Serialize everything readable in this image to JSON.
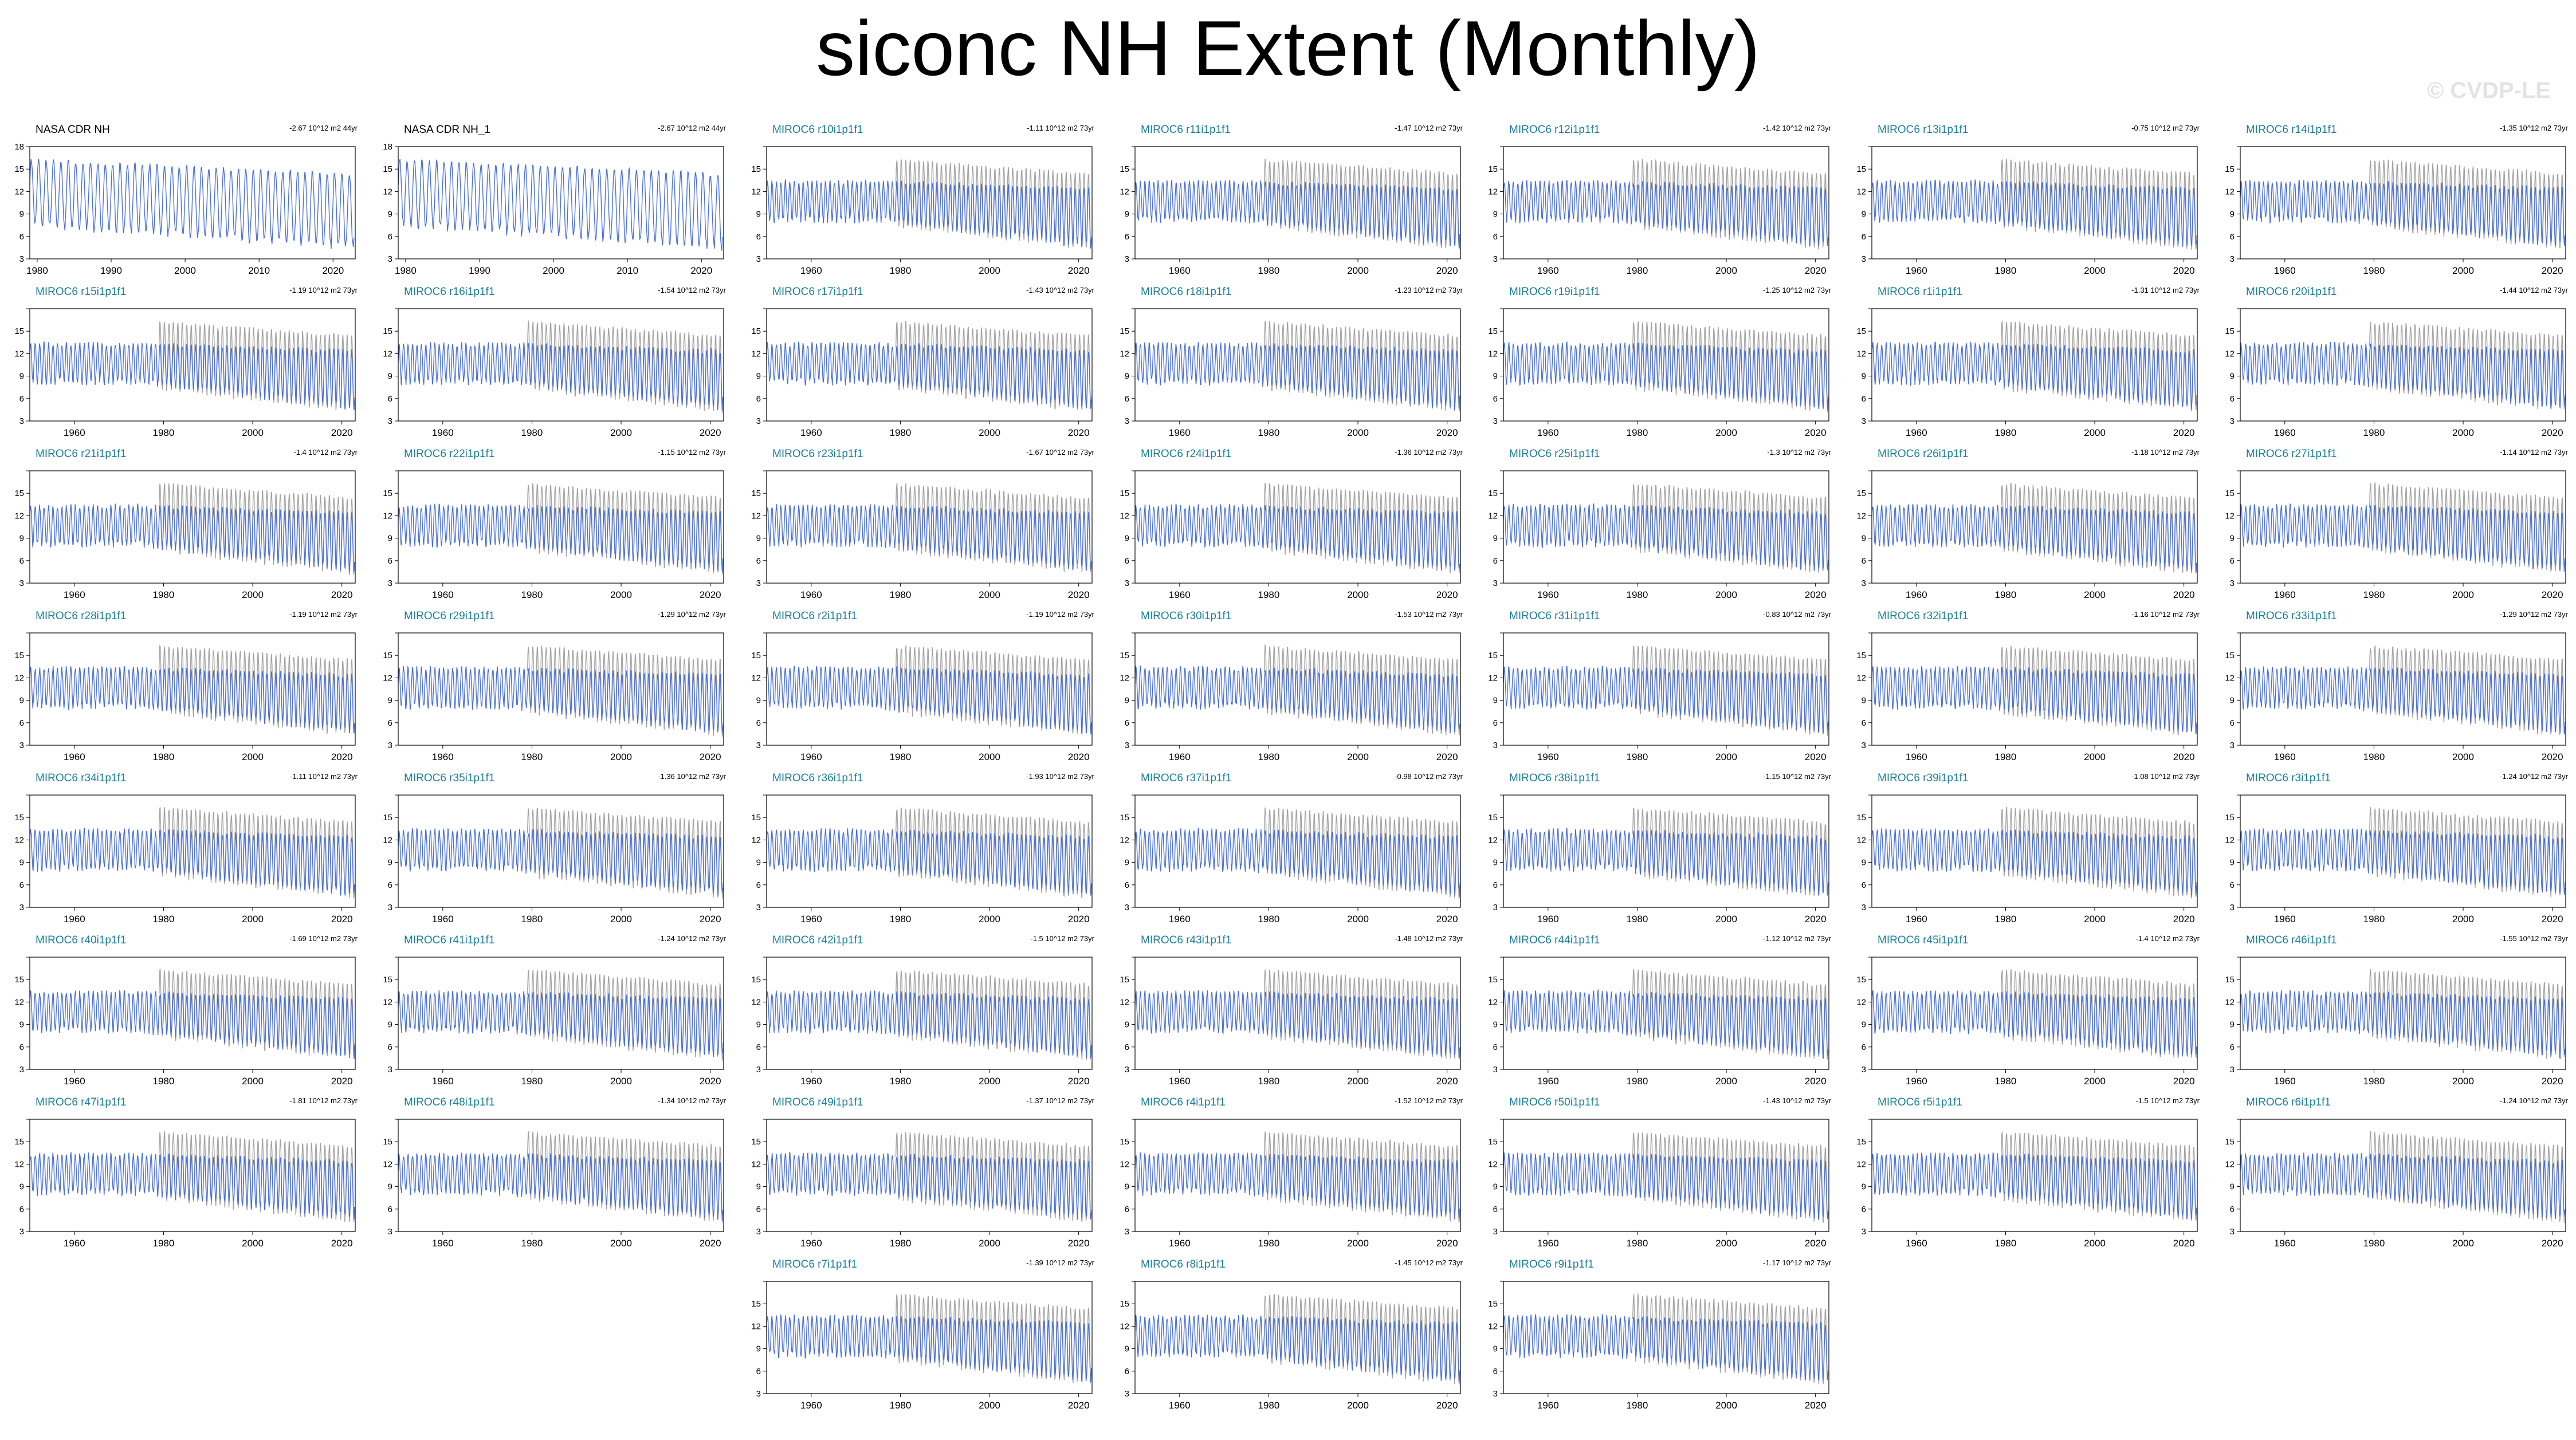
{
  "title": "siconc NH Extent (Monthly)",
  "watermark": "© CVDP-LE",
  "colors": {
    "model": "#4a6fdc",
    "obs": "#a3a3a3",
    "model_label": "#1a7f96"
  },
  "chart_data": {
    "type": "line",
    "description_units": "10^12 m2",
    "ylim": [
      3,
      18
    ],
    "yticks": [
      3,
      6,
      9,
      12,
      15,
      18
    ],
    "model_xlim": [
      1950,
      2023
    ],
    "obs_xlim": [
      1979,
      2023
    ],
    "model_xticks": [
      1960,
      1980,
      2000,
      2020
    ],
    "obs_xticks": [
      1980,
      1990,
      2000,
      2010,
      2020
    ],
    "panels": [
      {
        "label": "NASA CDR NH",
        "trend": "-2.67 10^12 m2 44yr",
        "kind": "obs"
      },
      {
        "label": "NASA CDR NH_1",
        "trend": "-2.67 10^12 m2 44yr",
        "kind": "obs"
      },
      {
        "label": "MIROC6 r10i1p1f1",
        "trend": "-1.11 10^12 m2 73yr",
        "kind": "model"
      },
      {
        "label": "MIROC6 r11i1p1f1",
        "trend": "-1.47 10^12 m2 73yr",
        "kind": "model"
      },
      {
        "label": "MIROC6 r12i1p1f1",
        "trend": "-1.42 10^12 m2 73yr",
        "kind": "model"
      },
      {
        "label": "MIROC6 r13i1p1f1",
        "trend": "-0.75 10^12 m2 73yr",
        "kind": "model"
      },
      {
        "label": "MIROC6 r14i1p1f1",
        "trend": "-1.35 10^12 m2 73yr",
        "kind": "model"
      },
      {
        "label": "MIROC6 r15i1p1f1",
        "trend": "-1.19 10^12 m2 73yr",
        "kind": "model"
      },
      {
        "label": "MIROC6 r16i1p1f1",
        "trend": "-1.54 10^12 m2 73yr",
        "kind": "model"
      },
      {
        "label": "MIROC6 r17i1p1f1",
        "trend": "-1.43 10^12 m2 73yr",
        "kind": "model"
      },
      {
        "label": "MIROC6 r18i1p1f1",
        "trend": "-1.23 10^12 m2 73yr",
        "kind": "model"
      },
      {
        "label": "MIROC6 r19i1p1f1",
        "trend": "-1.25 10^12 m2 73yr",
        "kind": "model"
      },
      {
        "label": "MIROC6 r1i1p1f1",
        "trend": "-1.31 10^12 m2 73yr",
        "kind": "model"
      },
      {
        "label": "MIROC6 r20i1p1f1",
        "trend": "-1.44 10^12 m2 73yr",
        "kind": "model"
      },
      {
        "label": "MIROC6 r21i1p1f1",
        "trend": "-1.4 10^12 m2 73yr",
        "kind": "model"
      },
      {
        "label": "MIROC6 r22i1p1f1",
        "trend": "-1.15 10^12 m2 73yr",
        "kind": "model"
      },
      {
        "label": "MIROC6 r23i1p1f1",
        "trend": "-1.67 10^12 m2 73yr",
        "kind": "model"
      },
      {
        "label": "MIROC6 r24i1p1f1",
        "trend": "-1.36 10^12 m2 73yr",
        "kind": "model"
      },
      {
        "label": "MIROC6 r25i1p1f1",
        "trend": "-1.3 10^12 m2 73yr",
        "kind": "model"
      },
      {
        "label": "MIROC6 r26i1p1f1",
        "trend": "-1.18 10^12 m2 73yr",
        "kind": "model"
      },
      {
        "label": "MIROC6 r27i1p1f1",
        "trend": "-1.14 10^12 m2 73yr",
        "kind": "model"
      },
      {
        "label": "MIROC6 r28i1p1f1",
        "trend": "-1.19 10^12 m2 73yr",
        "kind": "model"
      },
      {
        "label": "MIROC6 r29i1p1f1",
        "trend": "-1.29 10^12 m2 73yr",
        "kind": "model"
      },
      {
        "label": "MIROC6 r2i1p1f1",
        "trend": "-1.19 10^12 m2 73yr",
        "kind": "model"
      },
      {
        "label": "MIROC6 r30i1p1f1",
        "trend": "-1.53 10^12 m2 73yr",
        "kind": "model"
      },
      {
        "label": "MIROC6 r31i1p1f1",
        "trend": "-0.83 10^12 m2 73yr",
        "kind": "model"
      },
      {
        "label": "MIROC6 r32i1p1f1",
        "trend": "-1.16 10^12 m2 73yr",
        "kind": "model"
      },
      {
        "label": "MIROC6 r33i1p1f1",
        "trend": "-1.29 10^12 m2 73yr",
        "kind": "model"
      },
      {
        "label": "MIROC6 r34i1p1f1",
        "trend": "-1.11 10^12 m2 73yr",
        "kind": "model"
      },
      {
        "label": "MIROC6 r35i1p1f1",
        "trend": "-1.36 10^12 m2 73yr",
        "kind": "model"
      },
      {
        "label": "MIROC6 r36i1p1f1",
        "trend": "-1.93 10^12 m2 73yr",
        "kind": "model"
      },
      {
        "label": "MIROC6 r37i1p1f1",
        "trend": "-0.98 10^12 m2 73yr",
        "kind": "model"
      },
      {
        "label": "MIROC6 r38i1p1f1",
        "trend": "-1.15 10^12 m2 73yr",
        "kind": "model"
      },
      {
        "label": "MIROC6 r39i1p1f1",
        "trend": "-1.08 10^12 m2 73yr",
        "kind": "model"
      },
      {
        "label": "MIROC6 r3i1p1f1",
        "trend": "-1.24 10^12 m2 73yr",
        "kind": "model"
      },
      {
        "label": "MIROC6 r40i1p1f1",
        "trend": "-1.69 10^12 m2 73yr",
        "kind": "model"
      },
      {
        "label": "MIROC6 r41i1p1f1",
        "trend": "-1.24 10^12 m2 73yr",
        "kind": "model"
      },
      {
        "label": "MIROC6 r42i1p1f1",
        "trend": "-1.5 10^12 m2 73yr",
        "kind": "model"
      },
      {
        "label": "MIROC6 r43i1p1f1",
        "trend": "-1.48 10^12 m2 73yr",
        "kind": "model"
      },
      {
        "label": "MIROC6 r44i1p1f1",
        "trend": "-1.12 10^12 m2 73yr",
        "kind": "model"
      },
      {
        "label": "MIROC6 r45i1p1f1",
        "trend": "-1.4 10^12 m2 73yr",
        "kind": "model"
      },
      {
        "label": "MIROC6 r46i1p1f1",
        "trend": "-1.55 10^12 m2 73yr",
        "kind": "model"
      },
      {
        "label": "MIROC6 r47i1p1f1",
        "trend": "-1.81 10^12 m2 73yr",
        "kind": "model"
      },
      {
        "label": "MIROC6 r48i1p1f1",
        "trend": "-1.34 10^12 m2 73yr",
        "kind": "model"
      },
      {
        "label": "MIROC6 r49i1p1f1",
        "trend": "-1.37 10^12 m2 73yr",
        "kind": "model"
      },
      {
        "label": "MIROC6 r4i1p1f1",
        "trend": "-1.52 10^12 m2 73yr",
        "kind": "model"
      },
      {
        "label": "MIROC6 r50i1p1f1",
        "trend": "-1.43 10^12 m2 73yr",
        "kind": "model"
      },
      {
        "label": "MIROC6 r5i1p1f1",
        "trend": "-1.5 10^12 m2 73yr",
        "kind": "model"
      },
      {
        "label": "MIROC6 r6i1p1f1",
        "trend": "-1.24 10^12 m2 73yr",
        "kind": "model"
      },
      {
        "label": "MIROC6 r7i1p1f1",
        "trend": "-1.39 10^12 m2 73yr",
        "kind": "model"
      },
      {
        "label": "MIROC6 r8i1p1f1",
        "trend": "-1.45 10^12 m2 73yr",
        "kind": "model"
      },
      {
        "label": "MIROC6 r9i1p1f1",
        "trend": "-1.17 10^12 m2 73yr",
        "kind": "model"
      }
    ],
    "obs_series_approx": {
      "max_start": 16.3,
      "max_end": 14.4,
      "min_start": 7.5,
      "min_end": 4.5
    },
    "model_series_approx": {
      "max": 13.3,
      "min_start": 8.2,
      "min_end": 4.8
    }
  }
}
